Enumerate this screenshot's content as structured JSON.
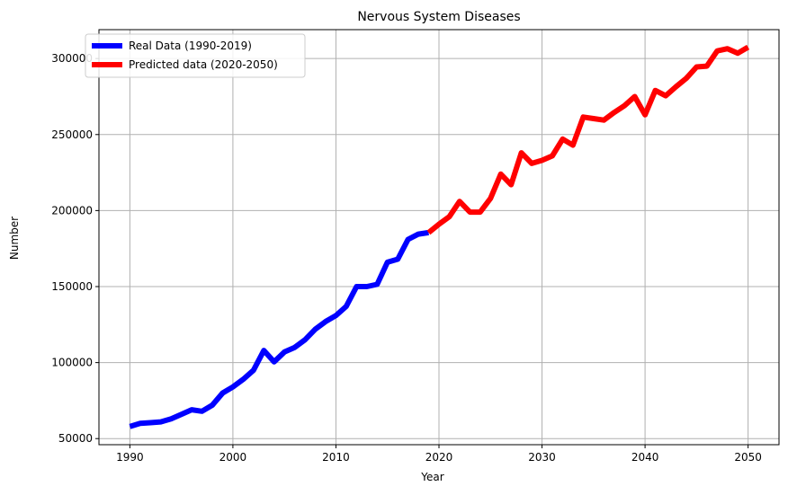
{
  "chart_data": {
    "type": "line",
    "title": "Nervous System Diseases",
    "xlabel": "Year",
    "ylabel": "Number",
    "xlim": [
      1987.0,
      2053.0
    ],
    "ylim": [
      46000,
      319000
    ],
    "xticks": [
      1990,
      2000,
      2010,
      2020,
      2030,
      2040,
      2050
    ],
    "yticks": [
      50000,
      100000,
      150000,
      200000,
      250000,
      300000
    ],
    "xtick_labels": [
      "1990",
      "2000",
      "2010",
      "2020",
      "2030",
      "2040",
      "2050"
    ],
    "ytick_labels": [
      "50000",
      "100000",
      "150000",
      "200000",
      "250000",
      "300000"
    ],
    "grid": true,
    "legend_position": "top-left",
    "series": [
      {
        "name": "Real Data (1990-2019)",
        "color": "#0000ff",
        "x": [
          1990,
          1991,
          1992,
          1993,
          1994,
          1995,
          1996,
          1997,
          1998,
          1999,
          2000,
          2001,
          2002,
          2003,
          2004,
          2005,
          2006,
          2007,
          2008,
          2009,
          2010,
          2011,
          2012,
          2013,
          2014,
          2015,
          2016,
          2017,
          2018,
          2019
        ],
        "y": [
          58000,
          60000,
          60500,
          61000,
          63000,
          66000,
          69000,
          68000,
          72000,
          80000,
          84000,
          89000,
          95000,
          108000,
          100500,
          107000,
          110000,
          115000,
          122000,
          127000,
          131000,
          137000,
          150000,
          150000,
          151500,
          166000,
          168000,
          181000,
          184500,
          185500
        ]
      },
      {
        "name": "Predicted data (2020-2050)",
        "color": "#ff0000",
        "x": [
          2019,
          2020,
          2021,
          2022,
          2023,
          2024,
          2025,
          2026,
          2027,
          2028,
          2029,
          2030,
          2031,
          2032,
          2033,
          2034,
          2035,
          2036,
          2037,
          2038,
          2039,
          2040,
          2041,
          2042,
          2043,
          2044,
          2045,
          2046,
          2047,
          2048,
          2049,
          2050
        ],
        "y": [
          185500,
          191000,
          196000,
          206000,
          199000,
          199000,
          208000,
          224000,
          217000,
          238000,
          231000,
          233000,
          236000,
          247000,
          243000,
          261500,
          260500,
          259500,
          264500,
          269000,
          275000,
          263000,
          279000,
          275500,
          281500,
          287000,
          294500,
          295000,
          305000,
          306500,
          303500,
          307500
        ]
      }
    ]
  }
}
